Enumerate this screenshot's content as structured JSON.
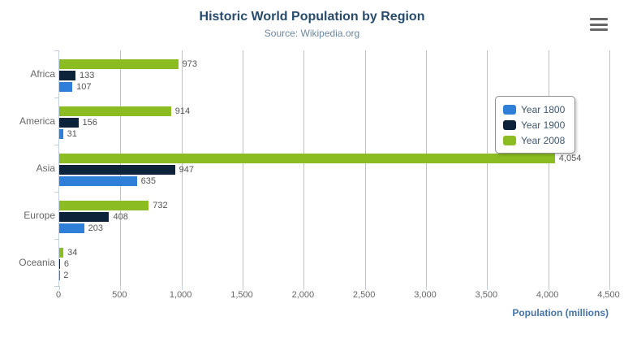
{
  "menu": {
    "icon": "hamburger-menu-icon"
  },
  "chart_data": {
    "type": "bar",
    "orientation": "horizontal",
    "title": "Historic World Population by Region",
    "subtitle": "Source: Wikipedia.org",
    "categories": [
      "Africa",
      "America",
      "Asia",
      "Europe",
      "Oceania"
    ],
    "series": [
      {
        "name": "Year 1800",
        "color": "#2f7ed8",
        "values": [
          107,
          31,
          635,
          203,
          2
        ]
      },
      {
        "name": "Year 1900",
        "color": "#0d233a",
        "values": [
          133,
          156,
          947,
          408,
          6
        ]
      },
      {
        "name": "Year 2008",
        "color": "#8bbc21",
        "values": [
          973,
          914,
          4054,
          732,
          34
        ]
      }
    ],
    "series_draw_order_top_to_bottom": [
      "Year 2008",
      "Year 1900",
      "Year 1800"
    ],
    "xlabel": "Population (millions)",
    "ylabel": "",
    "xlim": [
      0,
      4500
    ],
    "tick_step": 500,
    "tick_labels": [
      "0",
      "500",
      "1,000",
      "1,500",
      "2,000",
      "2,500",
      "3,000",
      "3,500",
      "4,000",
      "4,500"
    ],
    "grid": true,
    "legend_position": "right",
    "colors": {
      "title": "#274b6d",
      "subtitle": "#6d869f",
      "axis_line": "#c0d0e0",
      "gridline": "#c0c0c0",
      "axis_labels": "#666666",
      "data_labels": "#555555",
      "axis_title": "#4572a7",
      "legend_border": "#909090"
    }
  }
}
